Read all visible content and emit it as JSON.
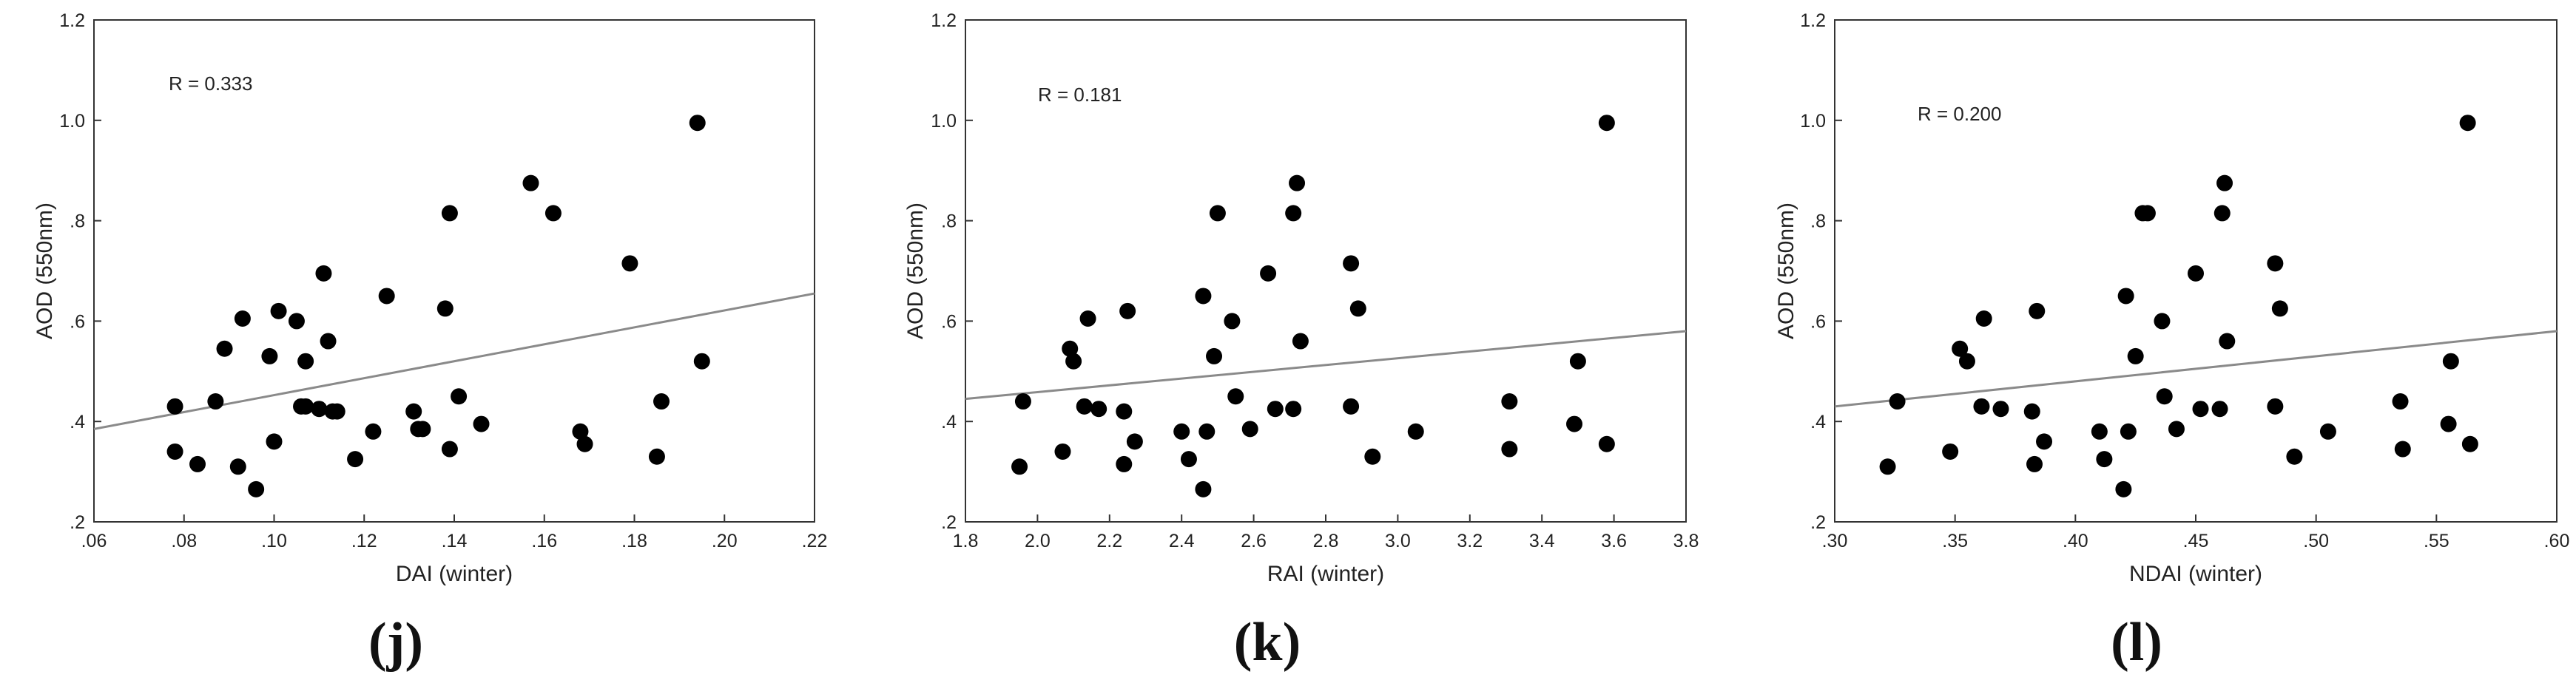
{
  "chart_data": [
    {
      "type": "scatter",
      "panel_label": "(j)",
      "r_text": "R = 0.333",
      "xlabel": "DAI (winter)",
      "ylabel": "AOD (550nm)",
      "xlim": [
        0.06,
        0.22
      ],
      "ylim": [
        0.2,
        1.2
      ],
      "xticks": [
        ".06",
        ".08",
        ".10",
        ".12",
        ".14",
        ".16",
        ".18",
        ".20",
        ".22"
      ],
      "yticks": [
        ".2",
        ".4",
        ".6",
        ".8",
        "1.0",
        "1.2"
      ],
      "grid": false,
      "regression_line": {
        "x": [
          0.06,
          0.22
        ],
        "y": [
          0.385,
          0.655
        ]
      },
      "x": [
        0.078,
        0.078,
        0.083,
        0.087,
        0.089,
        0.092,
        0.093,
        0.096,
        0.099,
        0.1,
        0.101,
        0.105,
        0.106,
        0.107,
        0.107,
        0.11,
        0.111,
        0.112,
        0.113,
        0.114,
        0.118,
        0.122,
        0.125,
        0.131,
        0.132,
        0.133,
        0.138,
        0.139,
        0.139,
        0.141,
        0.146,
        0.157,
        0.162,
        0.168,
        0.169,
        0.179,
        0.185,
        0.186,
        0.194,
        0.195
      ],
      "y": [
        0.43,
        0.34,
        0.315,
        0.44,
        0.545,
        0.31,
        0.605,
        0.265,
        0.53,
        0.36,
        0.62,
        0.6,
        0.43,
        0.52,
        0.43,
        0.425,
        0.695,
        0.56,
        0.42,
        0.42,
        0.325,
        0.38,
        0.65,
        0.42,
        0.385,
        0.385,
        0.625,
        0.815,
        0.345,
        0.45,
        0.395,
        0.875,
        0.815,
        0.38,
        0.355,
        0.715,
        0.33,
        0.44,
        0.995,
        0.52
      ]
    },
    {
      "type": "scatter",
      "panel_label": "(k)",
      "r_text": "R = 0.181",
      "xlabel": "RAI (winter)",
      "ylabel": "AOD (550nm)",
      "xlim": [
        1.8,
        3.8
      ],
      "ylim": [
        0.2,
        1.2
      ],
      "xticks": [
        "1.8",
        "2.0",
        "2.2",
        "2.4",
        "2.6",
        "2.8",
        "3.0",
        "3.2",
        "3.4",
        "3.6",
        "3.8"
      ],
      "yticks": [
        ".2",
        ".4",
        ".6",
        ".8",
        "1.0",
        "1.2"
      ],
      "grid": false,
      "regression_line": {
        "x": [
          1.8,
          3.8
        ],
        "y": [
          0.445,
          0.58
        ]
      },
      "x": [
        1.95,
        1.96,
        2.07,
        2.09,
        2.1,
        2.13,
        2.14,
        2.17,
        2.24,
        2.24,
        2.25,
        2.27,
        2.4,
        2.42,
        2.46,
        2.46,
        2.47,
        2.49,
        2.5,
        2.54,
        2.55,
        2.59,
        2.64,
        2.66,
        2.71,
        2.71,
        2.72,
        2.73,
        2.87,
        2.87,
        2.89,
        2.93,
        3.05,
        3.31,
        3.31,
        3.49,
        3.5,
        3.58,
        3.58
      ],
      "y": [
        0.31,
        0.44,
        0.34,
        0.545,
        0.52,
        0.43,
        0.605,
        0.425,
        0.42,
        0.315,
        0.62,
        0.36,
        0.38,
        0.325,
        0.265,
        0.65,
        0.38,
        0.53,
        0.815,
        0.6,
        0.45,
        0.385,
        0.695,
        0.425,
        0.425,
        0.815,
        0.875,
        0.56,
        0.715,
        0.43,
        0.625,
        0.33,
        0.38,
        0.44,
        0.345,
        0.395,
        0.52,
        0.995,
        0.355
      ]
    },
    {
      "type": "scatter",
      "panel_label": "(l)",
      "r_text": "R = 0.200",
      "xlabel": "NDAI (winter)",
      "ylabel": "AOD (550nm)",
      "xlim": [
        0.3,
        0.6
      ],
      "ylim": [
        0.2,
        1.2
      ],
      "xticks": [
        ".30",
        ".35",
        ".40",
        ".45",
        ".50",
        ".55",
        ".60"
      ],
      "yticks": [
        ".2",
        ".4",
        ".6",
        ".8",
        "1.0",
        "1.2"
      ],
      "grid": false,
      "regression_line": {
        "x": [
          0.3,
          0.6
        ],
        "y": [
          0.43,
          0.58
        ]
      },
      "x": [
        0.322,
        0.326,
        0.348,
        0.352,
        0.355,
        0.361,
        0.362,
        0.369,
        0.382,
        0.383,
        0.384,
        0.387,
        0.41,
        0.412,
        0.42,
        0.421,
        0.422,
        0.425,
        0.428,
        0.43,
        0.436,
        0.437,
        0.442,
        0.45,
        0.452,
        0.46,
        0.461,
        0.462,
        0.463,
        0.483,
        0.483,
        0.485,
        0.491,
        0.505,
        0.535,
        0.536,
        0.555,
        0.556,
        0.563,
        0.564
      ],
      "y": [
        0.31,
        0.44,
        0.34,
        0.545,
        0.52,
        0.43,
        0.605,
        0.425,
        0.42,
        0.315,
        0.62,
        0.36,
        0.38,
        0.325,
        0.265,
        0.65,
        0.38,
        0.53,
        0.815,
        0.815,
        0.6,
        0.45,
        0.385,
        0.695,
        0.425,
        0.425,
        0.815,
        0.875,
        0.56,
        0.715,
        0.43,
        0.625,
        0.33,
        0.38,
        0.44,
        0.345,
        0.395,
        0.52,
        0.995,
        0.355
      ]
    }
  ]
}
